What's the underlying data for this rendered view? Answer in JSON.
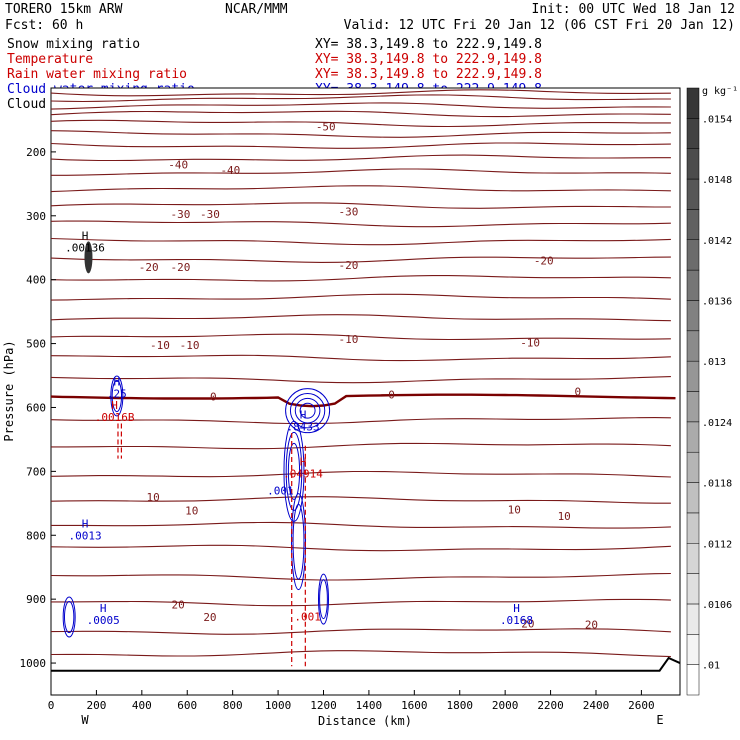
{
  "header": {
    "model": "TORERO  15km ARW",
    "org": "NCAR/MMM",
    "init": "Init: 00 UTC Wed 18 Jan 12",
    "fcst": "Fcst:   60 h",
    "valid": "Valid: 12 UTC Fri 20 Jan 12 (06 CST Fri 20 Jan 12)",
    "fields": [
      {
        "label": "Snow mixing ratio",
        "xy": "XY=  38.3,149.8 to 222.9,149.8",
        "color": "#000000"
      },
      {
        "label": "Temperature",
        "xy": "XY=  38.3,149.8 to 222.9,149.8",
        "color": "#cc0000"
      },
      {
        "label": "Rain water mixing ratio",
        "xy": "XY=  38.3,149.8 to 222.9,149.8",
        "color": "#cc0000"
      },
      {
        "label": "Cloud water mixing ratio",
        "xy": "XY=  38.3,149.8 to 222.9,149.8",
        "color": "#0000cc"
      },
      {
        "label": "Cloud ice mixing ratio",
        "xy": "XY=  38.3,149.8 to 222.9,149.8",
        "color": "#000000"
      }
    ]
  },
  "colors": {
    "temperature": "#7a1a1a",
    "freezing_line": "#7a0000",
    "rain": "#cc0000",
    "cloud_water": "#0000cc",
    "terrain": "#000000"
  },
  "chart_data": {
    "type": "cross-section",
    "xlabel": "Distance (km)",
    "ylabel": "Pressure (hPa)",
    "xlim": [
      0,
      2770
    ],
    "ylim": [
      1050,
      100
    ],
    "xticks": [
      0,
      200,
      400,
      600,
      800,
      1000,
      1200,
      1400,
      1600,
      1800,
      2000,
      2200,
      2400,
      2600
    ],
    "yticks": [
      200,
      300,
      400,
      500,
      600,
      700,
      800,
      900,
      1000
    ],
    "west_label": "W",
    "east_label": "E",
    "temperature_contours": [
      {
        "value": "-50",
        "labels": [
          {
            "x": 1210,
            "p": 160
          }
        ]
      },
      {
        "value": "-40",
        "labels": [
          {
            "x": 560,
            "p": 220
          },
          {
            "x": 790,
            "p": 228
          }
        ]
      },
      {
        "value": "-30",
        "labels": [
          {
            "x": 570,
            "p": 297
          },
          {
            "x": 700,
            "p": 297
          },
          {
            "x": 1310,
            "p": 293
          }
        ]
      },
      {
        "value": "-20",
        "labels": [
          {
            "x": 430,
            "p": 380
          },
          {
            "x": 570,
            "p": 380
          },
          {
            "x": 1310,
            "p": 377
          },
          {
            "x": 2170,
            "p": 370
          }
        ]
      },
      {
        "value": "-10",
        "labels": [
          {
            "x": 480,
            "p": 502
          },
          {
            "x": 610,
            "p": 502
          },
          {
            "x": 1310,
            "p": 493
          },
          {
            "x": 2110,
            "p": 498
          }
        ]
      },
      {
        "value": "0",
        "labels": [
          {
            "x": 715,
            "p": 583
          },
          {
            "x": 1500,
            "p": 580
          },
          {
            "x": 2320,
            "p": 575
          }
        ]
      },
      {
        "value": "10",
        "labels": [
          {
            "x": 450,
            "p": 740
          },
          {
            "x": 620,
            "p": 761
          },
          {
            "x": 2040,
            "p": 760
          },
          {
            "x": 2260,
            "p": 770
          }
        ]
      },
      {
        "value": "20",
        "labels": [
          {
            "x": 560,
            "p": 908
          },
          {
            "x": 700,
            "p": 928
          },
          {
            "x": 2100,
            "p": 938
          },
          {
            "x": 2380,
            "p": 940
          }
        ]
      }
    ],
    "maxima": [
      {
        "field": "Snow mixing ratio",
        "symbol": "H",
        "value": ".00136",
        "x": 150,
        "p": 350
      },
      {
        "field": "Cloud water mixing ratio",
        "symbol": "H",
        "value": ".25",
        "x": 290,
        "p": 578
      },
      {
        "field": "Rain water mixing ratio",
        "symbol": "H",
        "value": ".0016B",
        "x": 280,
        "p": 615
      },
      {
        "field": "Cloud water mixing ratio",
        "symbol": "H",
        "value": ".8433",
        "x": 1110,
        "p": 630
      },
      {
        "field": "Rain water mixing ratio",
        "symbol": "H",
        "value": ".04914",
        "x": 1110,
        "p": 703
      },
      {
        "field": "Cloud water mixing ratio",
        "symbol": "",
        "value": ".001",
        "x": 1010,
        "p": 730
      },
      {
        "field": "Cloud water mixing ratio",
        "symbol": "H",
        "value": ".0013",
        "x": 150,
        "p": 800
      },
      {
        "field": "Rain water mixing ratio",
        "symbol": "",
        "value": ".001",
        "x": 1130,
        "p": 927
      },
      {
        "field": "Cloud water mixing ratio",
        "symbol": "H",
        "value": ".0005",
        "x": 230,
        "p": 933
      },
      {
        "field": "Cloud water mixing ratio",
        "symbol": "H",
        "value": ".0168",
        "x": 2050,
        "p": 933
      }
    ],
    "colorbar": {
      "field": "Snow mixing ratio",
      "unit": "g kg⁻¹",
      "tick_labels": [
        ".01",
        ".0106",
        ".0112",
        ".0118",
        ".0124",
        ".013",
        ".0136",
        ".0142",
        ".0148",
        ".0154"
      ]
    }
  }
}
